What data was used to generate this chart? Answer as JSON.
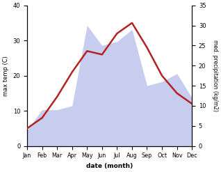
{
  "months": [
    "Jan",
    "Feb",
    "Mar",
    "Apr",
    "May",
    "Jun",
    "Jul",
    "Aug",
    "Sep",
    "Oct",
    "Nov",
    "Dec"
  ],
  "max_temp": [
    5,
    8,
    14,
    21,
    27,
    26,
    32,
    35,
    28,
    20,
    15,
    12
  ],
  "precipitation": [
    4,
    9,
    9,
    10,
    30,
    25,
    26,
    29,
    15,
    16,
    18,
    12
  ],
  "temp_color": "#b22222",
  "precip_fill_color": "#b0b8e8",
  "xlabel": "date (month)",
  "ylabel_left": "max temp (C)",
  "ylabel_right": "med. precipitation (kg/m2)",
  "ylim_left": [
    0,
    40
  ],
  "ylim_right": [
    0,
    35
  ],
  "yticks_left": [
    0,
    10,
    20,
    30,
    40
  ],
  "yticks_right": [
    0,
    5,
    10,
    15,
    20,
    25,
    30,
    35
  ],
  "bg_color": "#ffffff",
  "temp_linewidth": 1.8,
  "precip_alpha": 0.7
}
